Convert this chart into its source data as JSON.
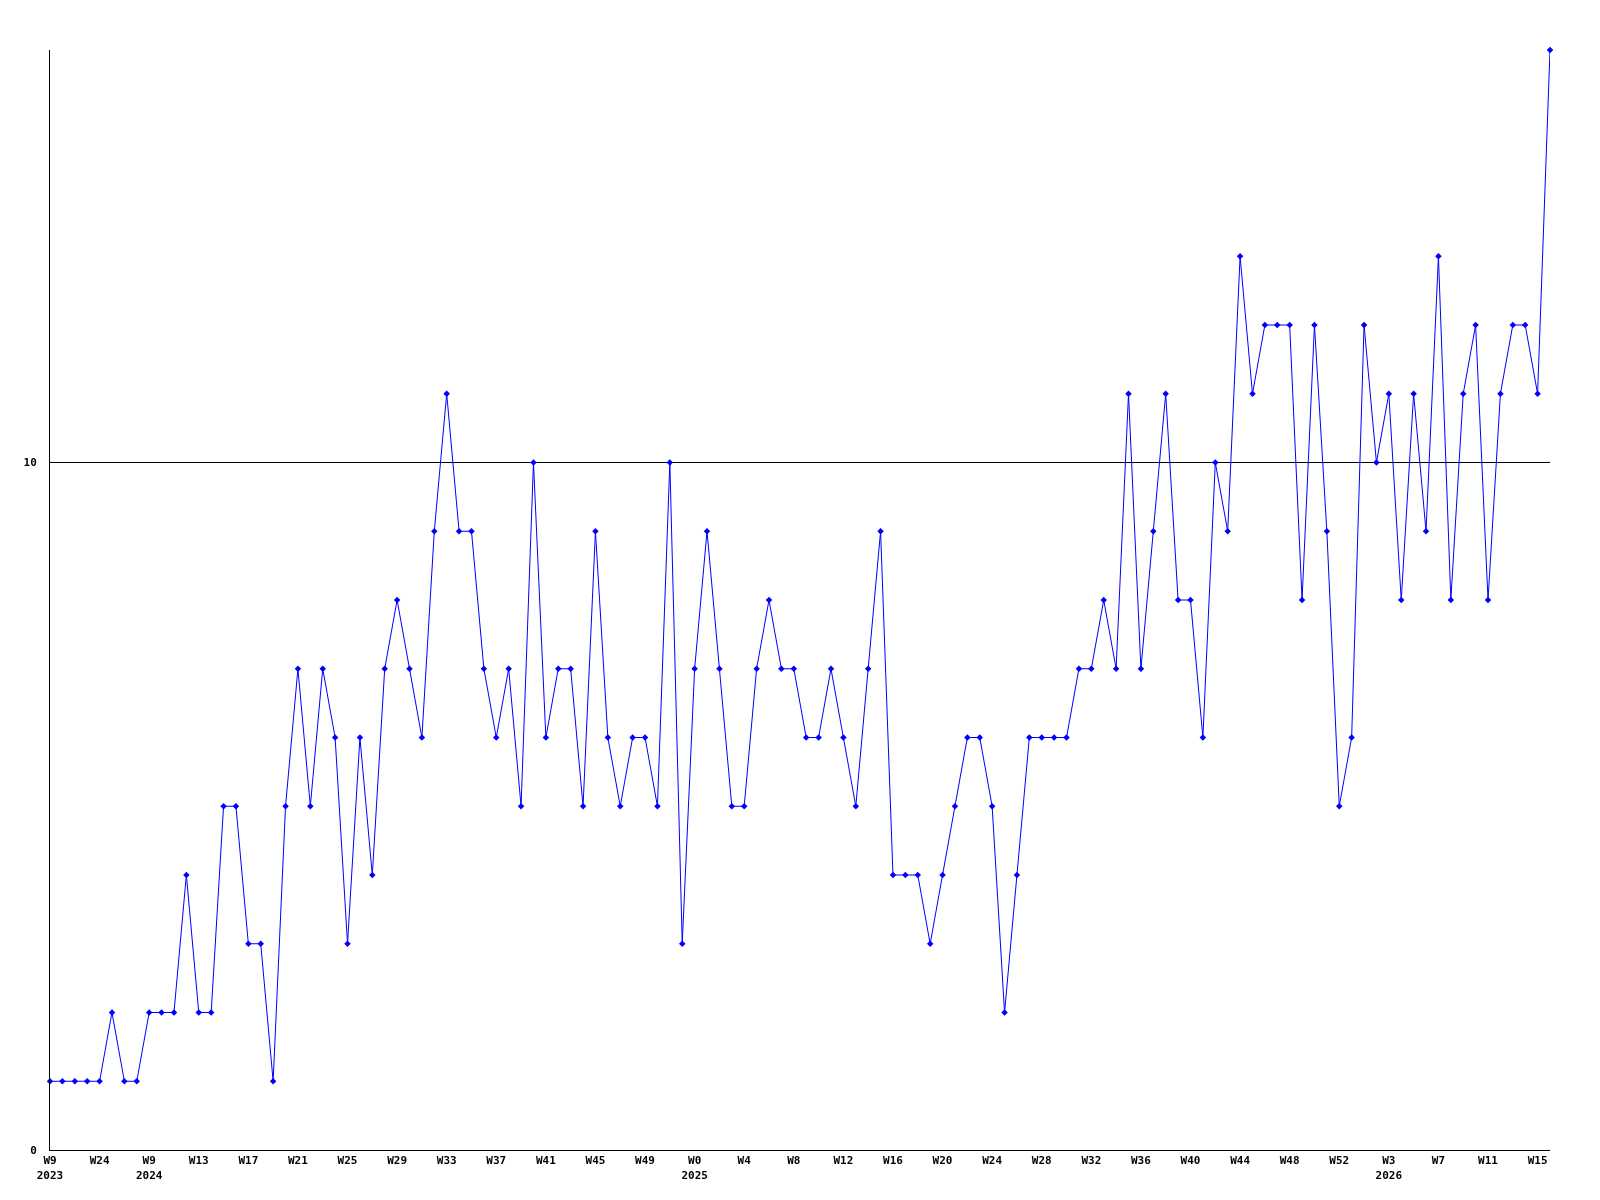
{
  "chart_data": {
    "type": "line",
    "categories": [
      "W9\n2023",
      null,
      null,
      null,
      "W24",
      null,
      null,
      null,
      "W9\n2024",
      null,
      null,
      null,
      "W13",
      null,
      null,
      null,
      "W17",
      null,
      null,
      null,
      "W21",
      null,
      null,
      null,
      "W25",
      null,
      null,
      null,
      "W29",
      null,
      null,
      null,
      "W33",
      null,
      null,
      null,
      "W37",
      null,
      null,
      null,
      "W41",
      null,
      null,
      null,
      "W45",
      null,
      null,
      null,
      "W49",
      null,
      null,
      null,
      "W0\n2025",
      null,
      null,
      null,
      "W4",
      null,
      null,
      null,
      "W8",
      null,
      null,
      null,
      "W12",
      null,
      null,
      null,
      "W16",
      null,
      null,
      null,
      "W20",
      null,
      null,
      null,
      "W24",
      null,
      null,
      null,
      "W28",
      null,
      null,
      null,
      "W32",
      null,
      null,
      null,
      "W36",
      null,
      null,
      null,
      "W40",
      null,
      null,
      null,
      "W44",
      null,
      null,
      null,
      "W48",
      null,
      null,
      null,
      "W52",
      null,
      null,
      null,
      "W3\n2026",
      null,
      null,
      null,
      "W7",
      null,
      null,
      null,
      "W11",
      null,
      null,
      null,
      "W15",
      null
    ],
    "values": [
      1,
      1,
      1,
      1,
      1,
      2,
      1,
      1,
      2,
      2,
      2,
      4,
      2,
      2,
      5,
      5,
      3,
      3,
      1,
      5,
      7,
      5,
      7,
      6,
      3,
      6,
      4,
      7,
      8,
      7,
      6,
      9,
      11,
      9,
      9,
      7,
      6,
      7,
      5,
      10,
      6,
      7,
      7,
      5,
      9,
      6,
      5,
      6,
      6,
      5,
      10,
      3,
      7,
      9,
      7,
      5,
      5,
      7,
      8,
      7,
      7,
      6,
      6,
      7,
      6,
      5,
      7,
      9,
      4,
      4,
      4,
      3,
      4,
      5,
      6,
      6,
      5,
      2,
      4,
      6,
      6,
      6,
      6,
      7,
      7,
      8,
      7,
      11,
      7,
      9,
      11,
      8,
      8,
      6,
      10,
      9,
      13,
      11,
      12,
      12,
      12,
      8,
      12,
      9,
      5,
      6,
      12,
      10,
      11,
      8,
      11,
      9,
      13,
      8,
      11,
      12,
      8,
      11,
      12,
      12,
      11,
      16
    ],
    "color": "#0000ff",
    "ylim": [
      0,
      16
    ],
    "yticks": [
      0,
      10
    ],
    "grid": "y",
    "marker": "diamond",
    "line_style": "solid"
  }
}
